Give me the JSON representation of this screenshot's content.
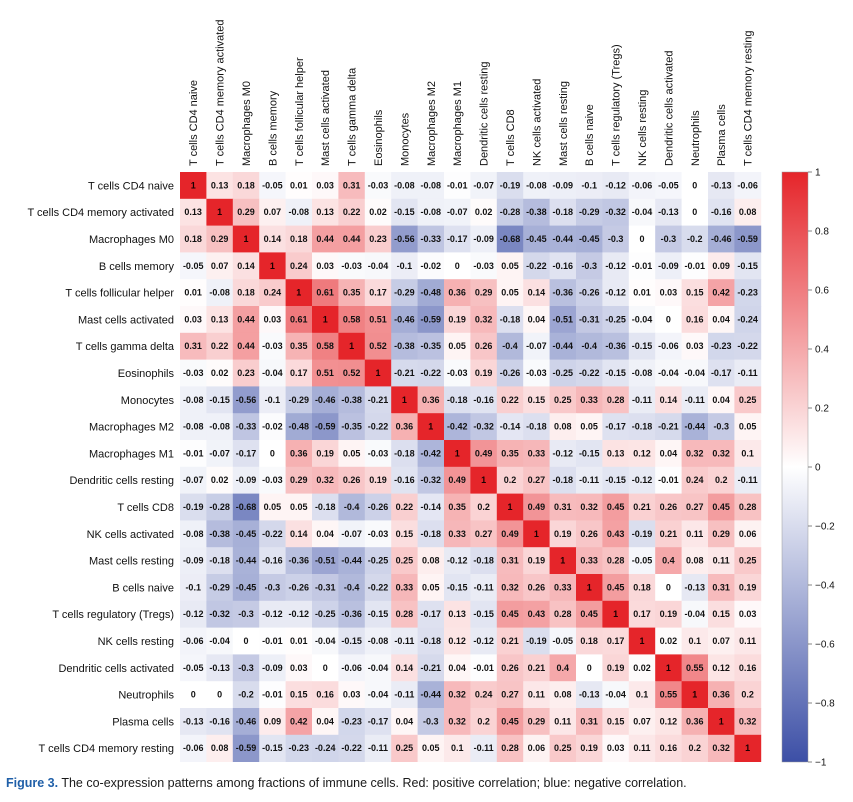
{
  "caption": {
    "figure_label": "Figure 3.",
    "text": "The co-expression patterns among fractions of immune cells. Red: positive correlation; blue: negative correlation."
  },
  "colors": {
    "negative": "#3c4fa6",
    "neutral": "#ffffff",
    "positive": "#e5252a"
  },
  "chart_data": {
    "type": "heatmap",
    "title": "",
    "labels": [
      "T cells CD4 naive",
      "T cells CD4 memory activated",
      "Macrophages M0",
      "B cells memory",
      "T cells follicular helper",
      "Mast cells activated",
      "T cells gamma delta",
      "Eosinophils",
      "Monocytes",
      "Macrophages M2",
      "Macrophages M1",
      "Dendritic cells resting",
      "T cells CD8",
      "NK cells activated",
      "Mast cells resting",
      "B cells naive",
      "T cells regulatory (Tregs)",
      "NK cells resting",
      "Dendritic cells activated",
      "Neutrophils",
      "Plasma cells",
      "T cells CD4 memory resting"
    ],
    "matrix": [
      [
        1,
        0.13,
        0.18,
        -0.05,
        0.01,
        0.03,
        0.31,
        -0.03,
        -0.08,
        -0.08,
        -0.01,
        -0.07,
        -0.19,
        -0.08,
        -0.09,
        -0.1,
        -0.12,
        -0.06,
        -0.05,
        0,
        -0.13,
        -0.06
      ],
      [
        0.13,
        1,
        0.29,
        0.07,
        -0.08,
        0.13,
        0.22,
        0.02,
        -0.15,
        -0.08,
        -0.07,
        0.02,
        -0.28,
        -0.38,
        -0.18,
        -0.29,
        -0.32,
        -0.04,
        -0.13,
        0,
        -0.16,
        0.08
      ],
      [
        0.18,
        0.29,
        1,
        0.14,
        0.18,
        0.44,
        0.44,
        0.23,
        -0.56,
        -0.33,
        -0.17,
        -0.09,
        -0.68,
        -0.45,
        -0.44,
        -0.45,
        -0.3,
        0,
        -0.3,
        -0.2,
        -0.46,
        -0.59
      ],
      [
        -0.05,
        0.07,
        0.14,
        1,
        0.24,
        0.03,
        -0.03,
        -0.04,
        -0.1,
        -0.02,
        0,
        -0.03,
        0.05,
        -0.22,
        -0.16,
        -0.3,
        -0.12,
        -0.01,
        -0.09,
        -0.01,
        0.09,
        -0.15
      ],
      [
        0.01,
        -0.08,
        0.18,
        0.24,
        1,
        0.61,
        0.35,
        0.17,
        -0.29,
        -0.48,
        0.36,
        0.29,
        0.05,
        0.14,
        -0.36,
        -0.26,
        -0.12,
        0.01,
        0.03,
        0.15,
        0.42,
        -0.23
      ],
      [
        0.03,
        0.13,
        0.44,
        0.03,
        0.61,
        1,
        0.58,
        0.51,
        -0.46,
        -0.59,
        0.19,
        0.32,
        -0.18,
        0.04,
        -0.51,
        -0.31,
        -0.25,
        -0.04,
        0,
        0.16,
        0.04,
        -0.24
      ],
      [
        0.31,
        0.22,
        0.44,
        -0.03,
        0.35,
        0.58,
        1,
        0.52,
        -0.38,
        -0.35,
        0.05,
        0.26,
        -0.4,
        -0.07,
        -0.44,
        -0.4,
        -0.36,
        -0.15,
        -0.06,
        0.03,
        -0.23,
        -0.22
      ],
      [
        -0.03,
        0.02,
        0.23,
        -0.04,
        0.17,
        0.51,
        0.52,
        1,
        -0.21,
        -0.22,
        -0.03,
        0.19,
        -0.26,
        -0.03,
        -0.25,
        -0.22,
        -0.15,
        -0.08,
        -0.04,
        -0.04,
        -0.17,
        -0.11
      ],
      [
        -0.08,
        -0.15,
        -0.56,
        -0.1,
        -0.29,
        -0.46,
        -0.38,
        -0.21,
        1,
        0.36,
        -0.18,
        -0.16,
        0.22,
        0.15,
        0.25,
        0.33,
        0.28,
        -0.11,
        0.14,
        -0.11,
        0.04,
        0.25
      ],
      [
        -0.08,
        -0.08,
        -0.33,
        -0.02,
        -0.48,
        -0.59,
        -0.35,
        -0.22,
        0.36,
        1,
        -0.42,
        -0.32,
        -0.14,
        -0.18,
        0.08,
        0.05,
        -0.17,
        -0.18,
        -0.21,
        -0.44,
        -0.3,
        0.05
      ],
      [
        -0.01,
        -0.07,
        -0.17,
        0,
        0.36,
        0.19,
        0.05,
        -0.03,
        -0.18,
        -0.42,
        1,
        0.49,
        0.35,
        0.33,
        -0.12,
        -0.15,
        0.13,
        0.12,
        0.04,
        0.32,
        0.32,
        0.1
      ],
      [
        -0.07,
        0.02,
        -0.09,
        -0.03,
        0.29,
        0.32,
        0.26,
        0.19,
        -0.16,
        -0.32,
        0.49,
        1,
        0.2,
        0.27,
        -0.18,
        -0.11,
        -0.15,
        -0.12,
        -0.01,
        0.24,
        0.2,
        -0.11
      ],
      [
        -0.19,
        -0.28,
        -0.68,
        0.05,
        0.05,
        -0.18,
        -0.4,
        -0.26,
        0.22,
        -0.14,
        0.35,
        0.2,
        1,
        0.49,
        0.31,
        0.32,
        0.45,
        0.21,
        0.26,
        0.27,
        0.45,
        0.28
      ],
      [
        -0.08,
        -0.38,
        -0.45,
        -0.22,
        0.14,
        0.04,
        -0.07,
        -0.03,
        0.15,
        -0.18,
        0.33,
        0.27,
        0.49,
        1,
        0.19,
        0.26,
        0.43,
        -0.19,
        0.21,
        0.11,
        0.29,
        0.06
      ],
      [
        -0.09,
        -0.18,
        -0.44,
        -0.16,
        -0.36,
        -0.51,
        -0.44,
        -0.25,
        0.25,
        0.08,
        -0.12,
        -0.18,
        0.31,
        0.19,
        1,
        0.33,
        0.28,
        -0.05,
        0.4,
        0.08,
        0.11,
        0.25
      ],
      [
        -0.1,
        -0.29,
        -0.45,
        -0.3,
        -0.26,
        -0.31,
        -0.4,
        -0.22,
        0.33,
        0.05,
        -0.15,
        -0.11,
        0.32,
        0.26,
        0.33,
        1,
        0.45,
        0.18,
        0,
        -0.13,
        0.31,
        0.19
      ],
      [
        -0.12,
        -0.32,
        -0.3,
        -0.12,
        -0.12,
        -0.25,
        -0.36,
        -0.15,
        0.28,
        -0.17,
        0.13,
        -0.15,
        0.45,
        0.43,
        0.28,
        0.45,
        1,
        0.17,
        0.19,
        -0.04,
        0.15,
        0.03
      ],
      [
        -0.06,
        -0.04,
        0,
        -0.01,
        0.01,
        -0.04,
        -0.15,
        -0.08,
        -0.11,
        -0.18,
        0.12,
        -0.12,
        0.21,
        -0.19,
        -0.05,
        0.18,
        0.17,
        1,
        0.02,
        0.1,
        0.07,
        0.11
      ],
      [
        -0.05,
        -0.13,
        -0.3,
        -0.09,
        0.03,
        0,
        -0.06,
        -0.04,
        0.14,
        -0.21,
        0.04,
        -0.01,
        0.26,
        0.21,
        0.4,
        0,
        0.19,
        0.02,
        1,
        0.55,
        0.12,
        0.16
      ],
      [
        0,
        0,
        -0.2,
        -0.01,
        0.15,
        0.16,
        0.03,
        -0.04,
        -0.11,
        -0.44,
        0.32,
        0.24,
        0.27,
        0.11,
        0.08,
        -0.13,
        -0.04,
        0.1,
        0.55,
        1,
        0.36,
        0.2
      ],
      [
        -0.13,
        -0.16,
        -0.46,
        0.09,
        0.42,
        0.04,
        -0.23,
        -0.17,
        0.04,
        -0.3,
        0.32,
        0.2,
        0.45,
        0.29,
        0.11,
        0.31,
        0.15,
        0.07,
        0.12,
        0.36,
        1,
        0.32
      ],
      [
        -0.06,
        0.08,
        -0.59,
        -0.15,
        -0.23,
        -0.24,
        -0.22,
        -0.11,
        0.25,
        0.05,
        0.1,
        -0.11,
        0.28,
        0.06,
        0.25,
        0.19,
        0.03,
        0.11,
        0.16,
        0.2,
        0.32,
        1
      ]
    ],
    "colorbar": {
      "range": [
        -1,
        1
      ],
      "ticks": [
        1,
        0.8,
        0.6,
        0.4,
        0.2,
        0,
        -0.2,
        -0.4,
        -0.6,
        -0.8,
        -1
      ],
      "tick_labels": [
        "1",
        "0.8",
        "0.6",
        "0.4",
        "0.2",
        "0",
        "−0.2",
        "−0.4",
        "−0.6",
        "−0.8",
        "−1"
      ]
    }
  }
}
